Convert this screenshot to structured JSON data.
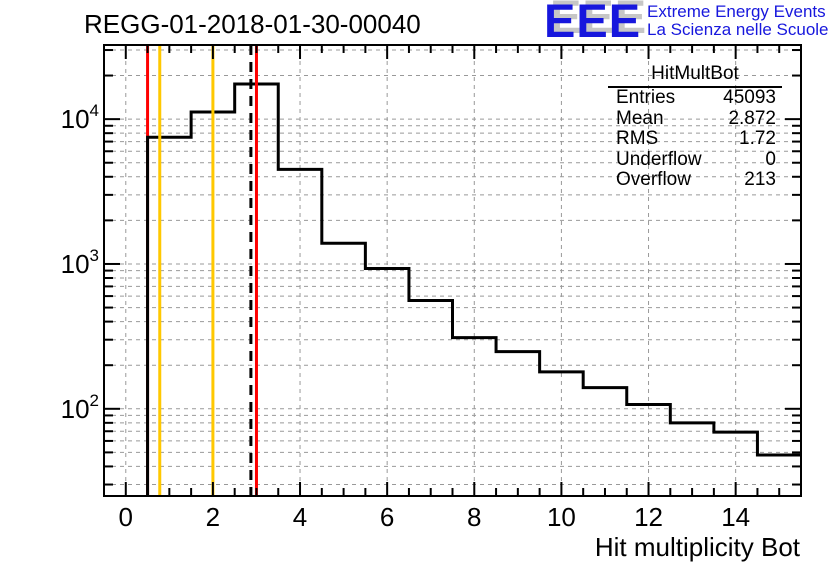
{
  "header": {
    "title": "REGG-01-2018-01-30-00040",
    "logo": {
      "acronym": "EEE",
      "tagline_en": "Extreme Energy Events",
      "tagline_it": "La Scienza nelle Scuole",
      "blue": "#1717dd",
      "shadow": "#c6c6c6"
    }
  },
  "stats_box": {
    "title": "HitMultBot",
    "rows": [
      {
        "label": "Entries",
        "value": "45093"
      },
      {
        "label": "Mean",
        "value": "2.872"
      },
      {
        "label": "RMS",
        "value": "1.72"
      },
      {
        "label": "Underflow",
        "value": "0"
      },
      {
        "label": "Overflow",
        "value": "213"
      }
    ]
  },
  "chart_data": {
    "type": "bar",
    "subtype": "step-histogram",
    "title": "REGG-01-2018-01-30-00040",
    "xlabel": "Hit multiplicity Bot",
    "ylabel": "",
    "yscale": "log",
    "xlim": [
      -0.5,
      15.5
    ],
    "ylim": [
      25,
      32500
    ],
    "grid": true,
    "grid_color": "#999999",
    "line_color": "#000000",
    "bin_centers": [
      0,
      1,
      2,
      3,
      4,
      5,
      6,
      7,
      8,
      9,
      10,
      11,
      12,
      13,
      14,
      15
    ],
    "values": [
      0,
      7500,
      11200,
      17500,
      4500,
      1390,
      930,
      560,
      310,
      248,
      180,
      140,
      107,
      80,
      69,
      48
    ],
    "entries": 45093,
    "mean": 2.872,
    "rms": 1.72,
    "underflow": 0,
    "overflow": 213,
    "x_ticks_major": [
      0,
      2,
      4,
      6,
      8,
      10,
      12,
      14
    ],
    "x_tick_labels": [
      "0",
      "2",
      "4",
      "6",
      "8",
      "10",
      "12",
      "14"
    ],
    "x_minor_step": 0.5,
    "y_ticks_major_exponents": [
      2,
      3,
      4
    ],
    "y_tick_base": "10",
    "marker_lines": [
      {
        "x": 0.5,
        "color": "#ff0000",
        "style": "solid",
        "layer": "under",
        "name": "red-threshold-low-line"
      },
      {
        "x": 0.78,
        "color": "#ffc800",
        "style": "solid",
        "layer": "over",
        "name": "orange-threshold-low-line"
      },
      {
        "x": 2.0,
        "color": "#ffc800",
        "style": "solid",
        "layer": "over",
        "name": "orange-threshold-high-line"
      },
      {
        "x": 2.872,
        "color": "#000000",
        "style": "dashed",
        "layer": "over",
        "name": "mean-dashed-line"
      },
      {
        "x": 3.0,
        "color": "#ff0000",
        "style": "solid",
        "layer": "over",
        "name": "red-threshold-high-line"
      }
    ]
  }
}
